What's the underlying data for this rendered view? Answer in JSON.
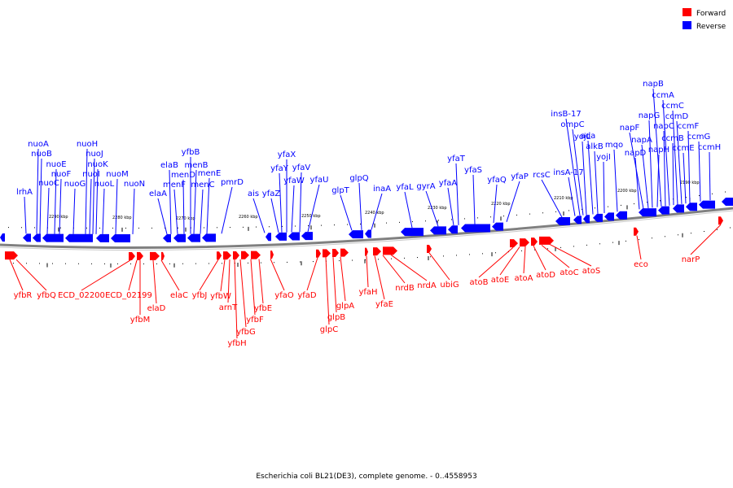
{
  "caption": "Escherichia coli BL21(DE3), complete genome. - 0..4558953",
  "legend": [
    {
      "label": "Forward",
      "color": "#ff0000"
    },
    {
      "label": "Reverse",
      "color": "#0000ff"
    }
  ],
  "colors": {
    "forward": "#ff0000",
    "reverse": "#0000ff",
    "backbone": "#808080"
  },
  "ticks": [
    "2290 kbp",
    "2280 kbp",
    "2270 kbp",
    "2260 kbp",
    "2250 kbp",
    "2240 kbp",
    "2230 kbp",
    "2220 kbp",
    "2210 kbp",
    "2200 kbp",
    "2190 kbp"
  ],
  "reverse_genes": [
    "lrhA",
    "nuoA",
    "nuoB",
    "nuoC",
    "nuoE",
    "nuoF",
    "nuoG",
    "nuoH",
    "nuoI",
    "nuoJ",
    "nuoK",
    "nuoL",
    "nuoM",
    "nuoN",
    "elaA",
    "elaB",
    "menF",
    "menD",
    "menB",
    "yfbB",
    "menC",
    "menE",
    "pmrD",
    "ais",
    "yfaZ",
    "yfaY",
    "yfaX",
    "yfaW",
    "yfaV",
    "yfaU",
    "glpT",
    "glpQ",
    "inaA",
    "yfaL",
    "gyrA",
    "yfaA",
    "yfaT",
    "yfaS",
    "yfaQ",
    "yfaP",
    "rcsC",
    "insA-17",
    "insB-17",
    "ompC",
    "yojL",
    "ada",
    "alkB",
    "yojI",
    "mqo",
    "napD",
    "napF",
    "napA",
    "napG",
    "napH",
    "napB",
    "napC",
    "ccmA",
    "ccmB",
    "ccmC",
    "ccmD",
    "ccmE",
    "ccmF",
    "ccmG",
    "ccmH"
  ],
  "forward_genes": [
    "yfbR",
    "yfbQ",
    "ECD_02200",
    "ECD_02199",
    "yfbM",
    "elaD",
    "elaC",
    "yfbJ",
    "yfbW",
    "arnT",
    "yfbH",
    "yfbG",
    "yfbF",
    "yfbE",
    "yfaO",
    "yfaD",
    "glpC",
    "glpB",
    "glpA",
    "yfaH",
    "yfaE",
    "nrdB",
    "nrdA",
    "ubiG",
    "atoB",
    "atoE",
    "atoA",
    "atoD",
    "atoC",
    "atoS",
    "eco",
    "narP"
  ]
}
